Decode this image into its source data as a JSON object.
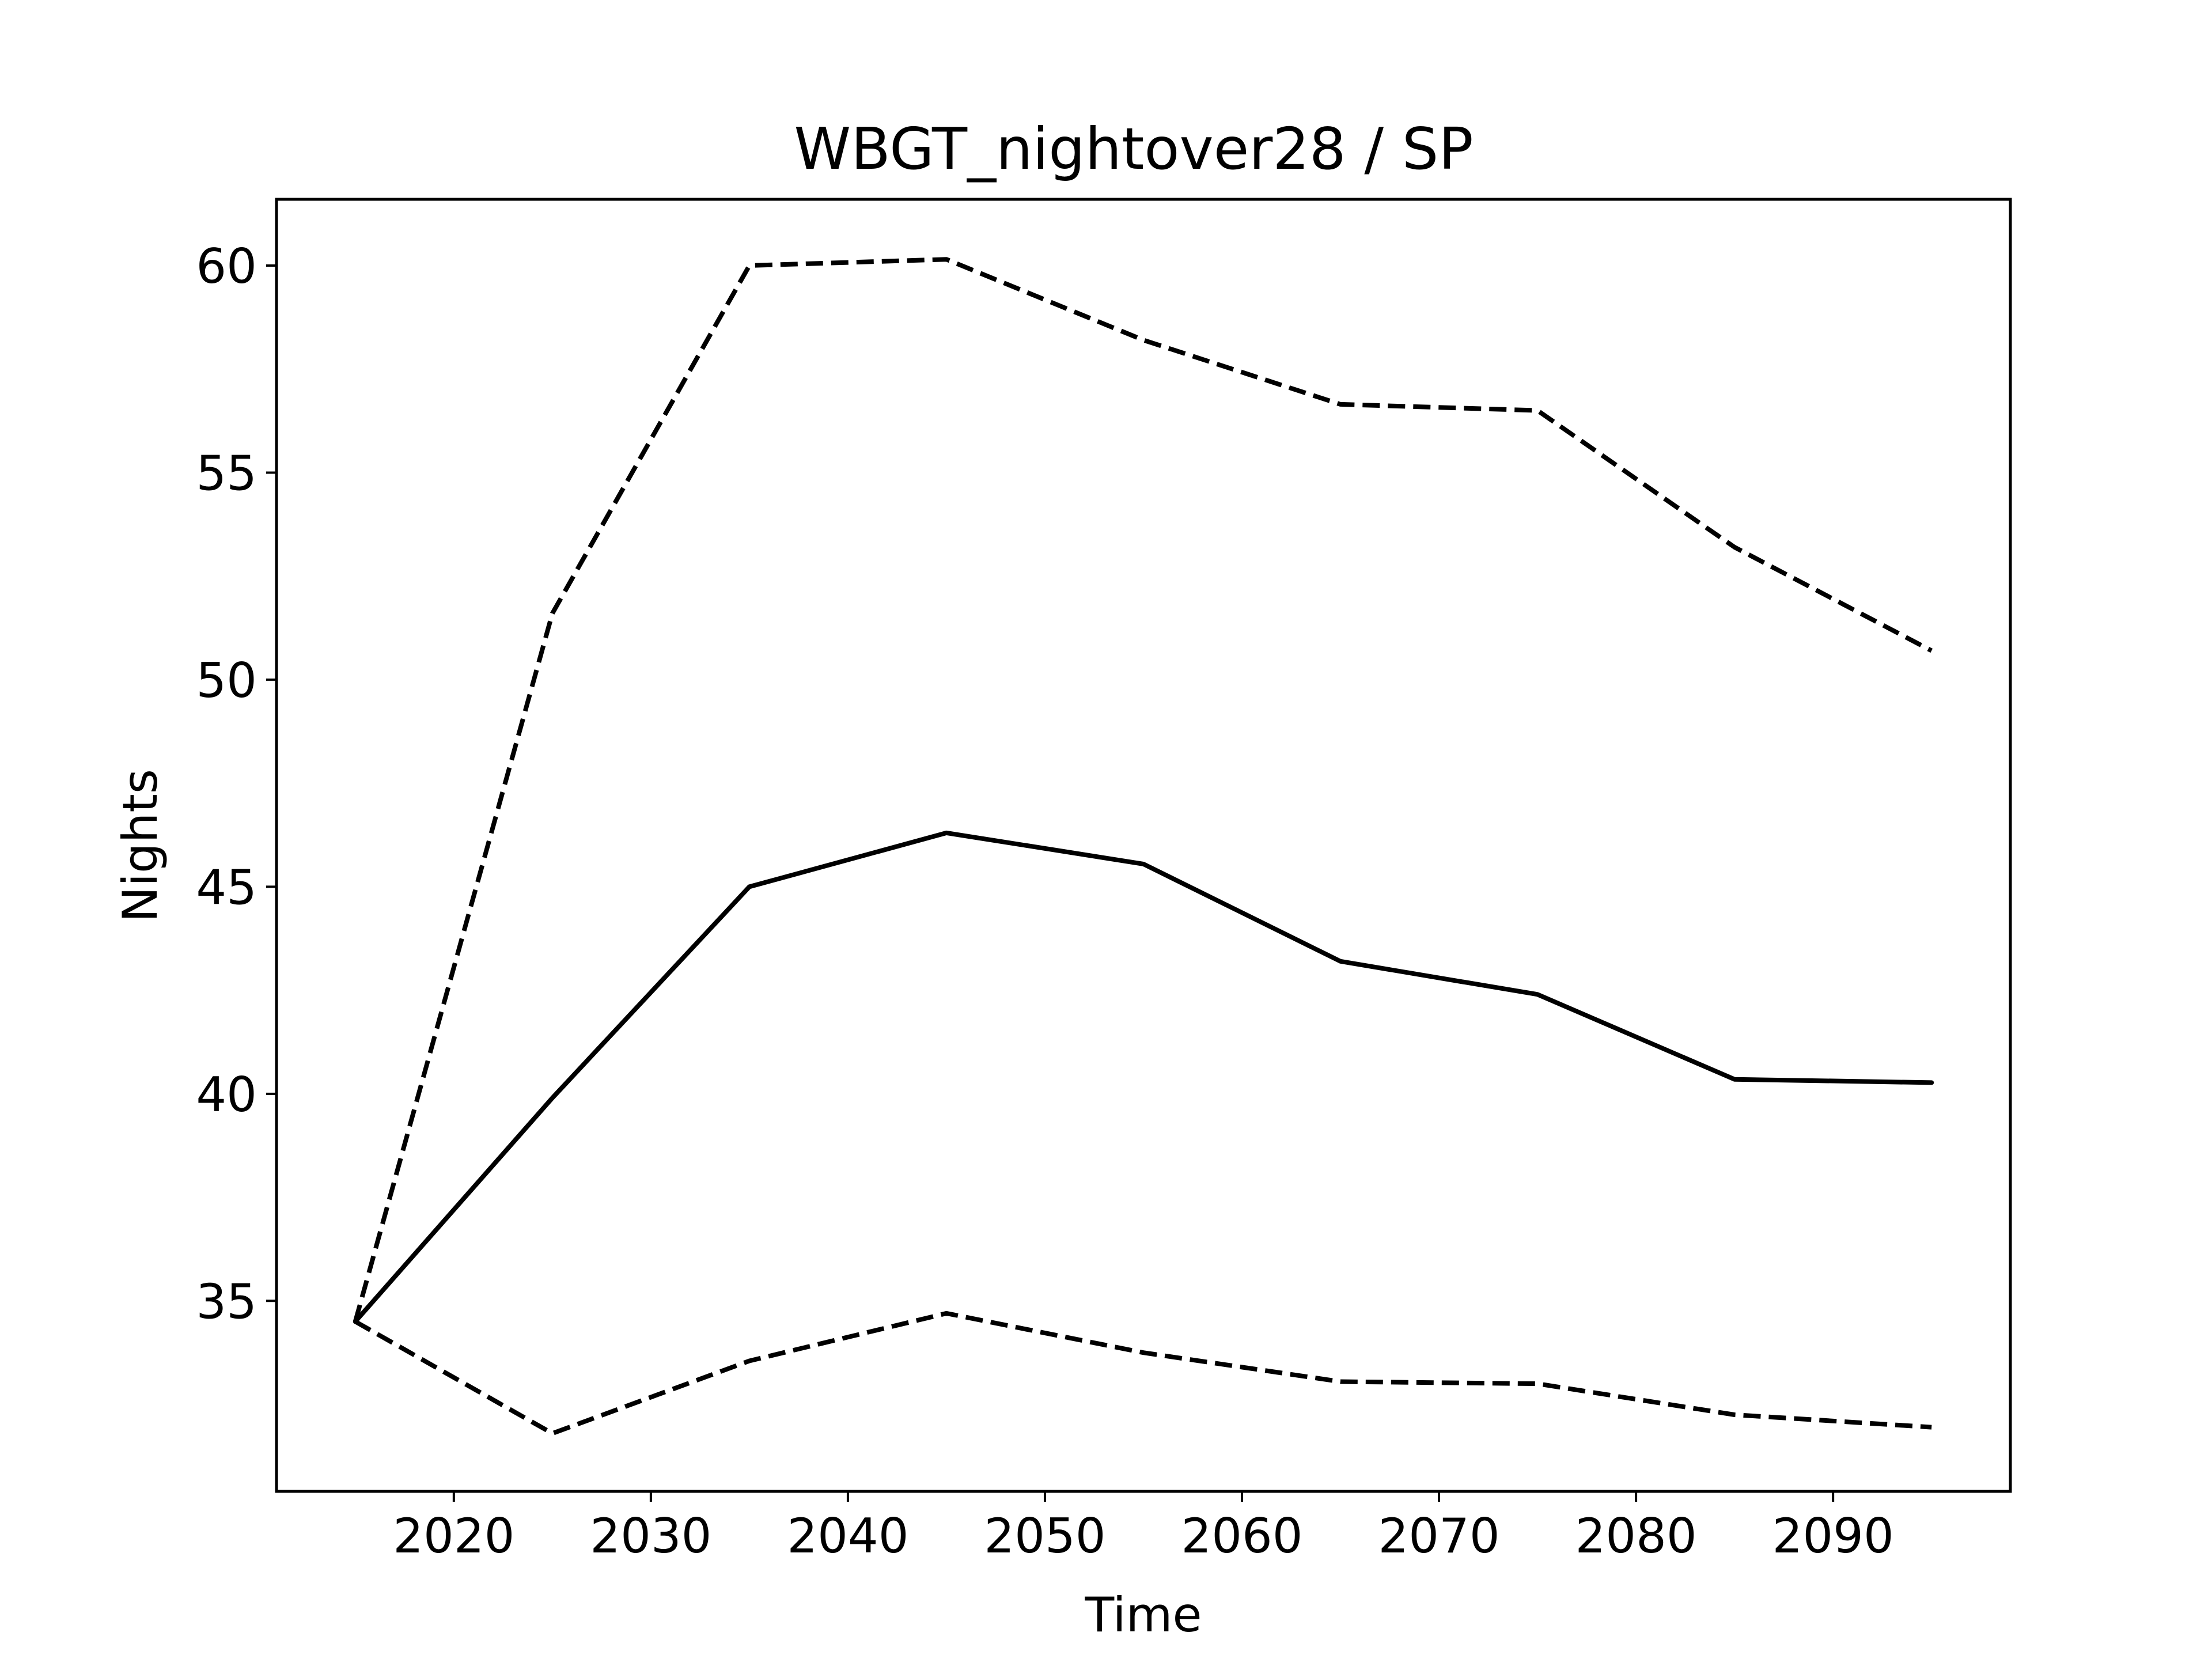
{
  "chart_data": {
    "type": "line",
    "title": "WBGT_nightover28 / SP",
    "xlabel": "Time",
    "ylabel": "Nights",
    "x": [
      2015,
      2025,
      2035,
      2045,
      2055,
      2065,
      2075,
      2085,
      2095
    ],
    "series": [
      {
        "style": "solid",
        "color": "#000000",
        "values": [
          34.5,
          39.9,
          45.0,
          46.3,
          45.55,
          43.2,
          42.4,
          40.35,
          40.27
        ]
      },
      {
        "style": "dashed",
        "color": "#000000",
        "values": [
          34.5,
          51.6,
          60.0,
          60.15,
          58.2,
          56.65,
          56.5,
          53.2,
          50.7
        ]
      },
      {
        "style": "dashed",
        "color": "#000000",
        "values": [
          34.5,
          31.8,
          33.55,
          34.7,
          33.75,
          33.05,
          33.0,
          32.25,
          31.95
        ]
      }
    ],
    "xlim": [
      2011.0,
      2099.0
    ],
    "ylim": [
      30.4,
      61.6
    ],
    "xticks": [
      2020,
      2030,
      2040,
      2050,
      2060,
      2070,
      2080,
      2090
    ],
    "xtick_labels": [
      "2020",
      "2030",
      "2040",
      "2050",
      "2060",
      "2070",
      "2080",
      "2090"
    ],
    "yticks": [
      35,
      40,
      45,
      50,
      55,
      60
    ],
    "ytick_labels": [
      "35",
      "40",
      "45",
      "50",
      "55",
      "60"
    ],
    "grid": false,
    "legend": "none"
  }
}
